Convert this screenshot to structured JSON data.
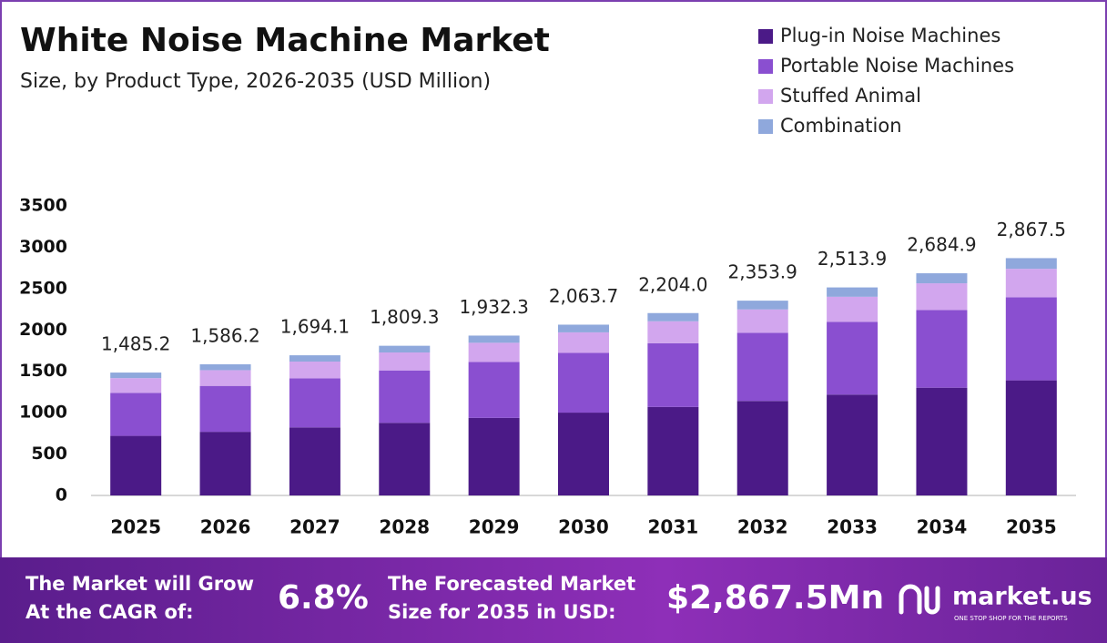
{
  "chart_data": {
    "type": "stacked_bar",
    "title": "White Noise Machine Market",
    "subtitle": "Size, by Product Type, 2026-2035 (USD Million)",
    "categories": [
      "2025",
      "2026",
      "2027",
      "2028",
      "2029",
      "2030",
      "2031",
      "2032",
      "2033",
      "2034",
      "2035"
    ],
    "series": [
      {
        "name": "Plug-in Noise Machines",
        "color": "#4b1a87",
        "values": [
          720,
          769,
          822,
          878,
          937,
          1001,
          1069,
          1142,
          1219,
          1302,
          1391
        ]
      },
      {
        "name": "Portable Noise Machines",
        "color": "#8a4fd0",
        "values": [
          520,
          555,
          593,
          633,
          676,
          722,
          771,
          824,
          880,
          940,
          1004
        ]
      },
      {
        "name": "Stuffed Animal",
        "color": "#d2a6ee",
        "values": [
          178,
          190,
          203,
          217,
          232,
          248,
          265,
          282,
          302,
          322,
          344
        ]
      },
      {
        "name": "Combination",
        "color": "#8fa8dc",
        "values": [
          67,
          71,
          76,
          81,
          87,
          93,
          99,
          106,
          113,
          121,
          129
        ]
      }
    ],
    "totals": {
      "values": [
        1485.2,
        1586.2,
        1694.1,
        1809.3,
        1932.3,
        2063.7,
        2204.0,
        2353.9,
        2513.9,
        2684.9,
        2867.5
      ],
      "value_labels": [
        "1,485.2",
        "1,586.2",
        "1,694.1",
        "1,809.3",
        "1,932.3",
        "2,063.7",
        "2,204.0",
        "2,353.9",
        "2,513.9",
        "2,684.9",
        "2,867.5"
      ]
    },
    "ylim": [
      0,
      3500
    ],
    "yticks": [
      0,
      500,
      1000,
      1500,
      2000,
      2500,
      3000,
      3500
    ],
    "grid": false,
    "legend": "top-right"
  },
  "footer": {
    "cagr_text": [
      "The Market will Grow",
      "At the CAGR of:"
    ],
    "cagr": "6.8%",
    "forecast_text": [
      "The Forecasted Market",
      "Size for 2035 in USD:"
    ],
    "forecast": "$2,867.5Mn",
    "brand": "market.us",
    "tagline": "ONE STOP SHOP FOR THE REPORTS"
  }
}
